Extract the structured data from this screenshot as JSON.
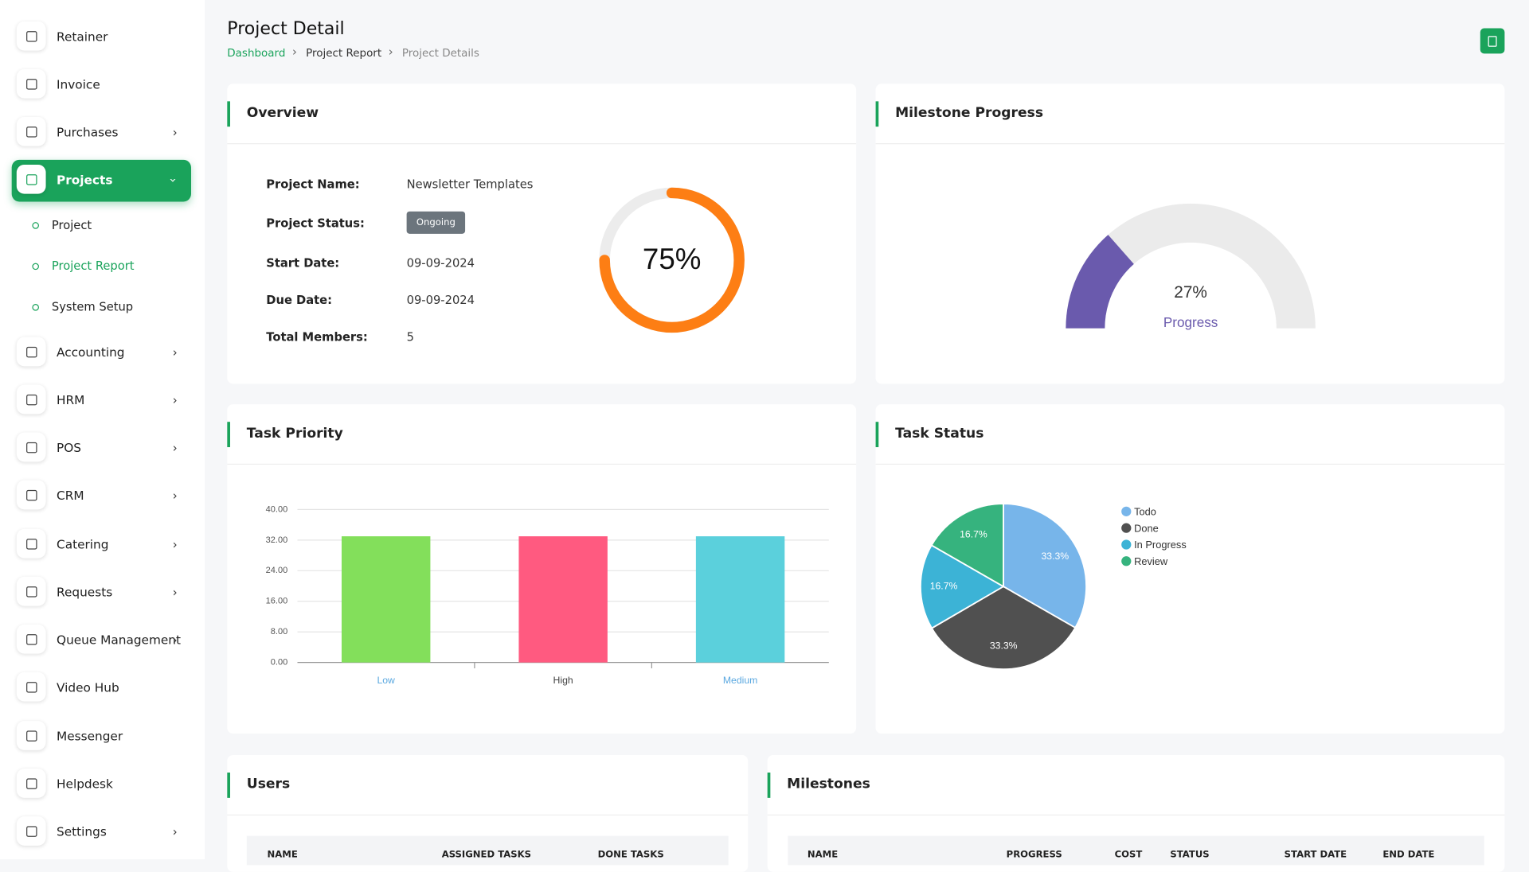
{
  "sidebar": {
    "items": [
      "Retainer",
      "Invoice",
      "Purchases",
      "Projects",
      "Accounting",
      "HRM",
      "POS",
      "CRM",
      "Catering",
      "Requests",
      "Queue Management",
      "Video Hub",
      "Messenger",
      "Helpdesk",
      "Settings"
    ],
    "submenu": [
      "Project",
      "Project Report",
      "System Setup"
    ]
  },
  "header": {
    "title": "Project Detail",
    "breadcrumb": [
      "Dashboard",
      "Project Report",
      "Project Details"
    ]
  },
  "overview": {
    "title": "Overview",
    "fields": [
      [
        "Project Name:",
        "Newsletter Templates"
      ],
      [
        "Project Status:",
        "Ongoing"
      ],
      [
        "Start Date:",
        "09-09-2024"
      ],
      [
        "Due Date:",
        "09-09-2024"
      ],
      [
        "Total Members:",
        "5"
      ]
    ]
  },
  "chart_data": [
    {
      "type": "ring",
      "values": [
        75
      ],
      "value_labels": [
        "75%"
      ],
      "color": "#fd7e14"
    },
    {
      "type": "gauge",
      "title": "Milestone Progress",
      "values": [
        27
      ],
      "value_labels": [
        "27%"
      ],
      "label": "Progress",
      "color": "#6a5aad"
    },
    {
      "type": "bar",
      "title": "Task Priority",
      "categories": [
        "Low",
        "High",
        "Medium"
      ],
      "values": [
        33,
        33,
        33
      ],
      "colors": [
        "#83df5b",
        "#ff5a80",
        "#5bd0dc"
      ],
      "ylim": [
        0,
        40
      ],
      "yticks": [
        {
          "value": 0,
          "label": "0.00"
        },
        {
          "value": 8,
          "label": "8.00"
        },
        {
          "value": 16,
          "label": "16.00"
        },
        {
          "value": 24,
          "label": "24.00"
        },
        {
          "value": 32,
          "label": "32.00"
        },
        {
          "value": 40,
          "label": "40.00"
        }
      ],
      "grid": true
    },
    {
      "type": "pie",
      "title": "Task Status",
      "categories": [
        "Todo",
        "Done",
        "In Progress",
        "Review"
      ],
      "values": [
        33.3,
        33.3,
        16.7,
        16.7
      ],
      "value_labels": [
        "33.3%",
        "33.3%",
        "16.7%",
        "16.7%"
      ],
      "colors": [
        "#77b5ea",
        "#505050",
        "#3cb3d6",
        "#36b37e"
      ]
    }
  ],
  "users": {
    "title": "Users",
    "columns": [
      "NAME",
      "ASSIGNED TASKS",
      "DONE TASKS"
    ]
  },
  "milestones": {
    "title": "Milestones",
    "columns": [
      "NAME",
      "PROGRESS",
      "COST",
      "STATUS",
      "START DATE",
      "END DATE"
    ]
  }
}
